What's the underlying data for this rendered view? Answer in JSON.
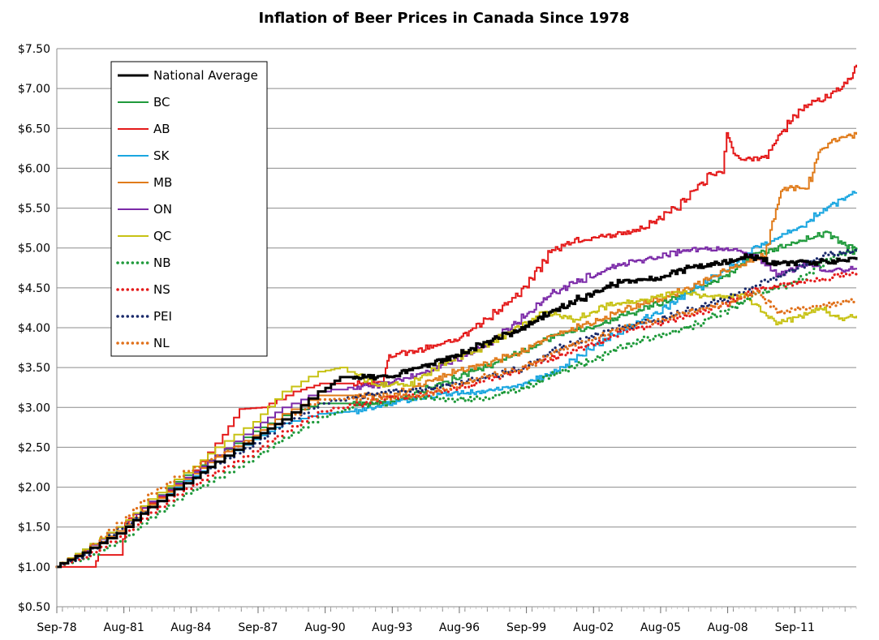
{
  "chart_data": {
    "type": "line",
    "title": "Inflation of Beer Prices in Canada Since 1978",
    "xlabel": "",
    "ylabel": "",
    "x_ticks": [
      "Sep-78",
      "Aug-81",
      "Aug-84",
      "Sep-87",
      "Aug-90",
      "Aug-93",
      "Aug-96",
      "Sep-99",
      "Aug-02",
      "Aug-05",
      "Aug-08",
      "Sep-11"
    ],
    "y_ticks": [
      "$0.50",
      "$1.00",
      "$1.50",
      "$2.00",
      "$2.50",
      "$3.00",
      "$3.50",
      "$4.00",
      "$4.50",
      "$5.00",
      "$5.50",
      "$6.00",
      "$6.50",
      "$7.00",
      "$7.50"
    ],
    "ylim": [
      0.5,
      7.5
    ],
    "xlim": [
      1978.75,
      2014.5
    ],
    "grid": "horizontal",
    "legend_position": "top-left",
    "series": [
      {
        "name": "National Average",
        "color": "#000000",
        "style": "solid",
        "points": [
          [
            1978.75,
            1.0
          ],
          [
            1980,
            1.18
          ],
          [
            1981.6,
            1.42
          ],
          [
            1983,
            1.75
          ],
          [
            1984.6,
            2.05
          ],
          [
            1986,
            2.32
          ],
          [
            1987.7,
            2.62
          ],
          [
            1989,
            2.85
          ],
          [
            1990.6,
            3.2
          ],
          [
            1991.5,
            3.38
          ],
          [
            1993.6,
            3.38
          ],
          [
            1995,
            3.5
          ],
          [
            1996.6,
            3.65
          ],
          [
            1998,
            3.82
          ],
          [
            1999.7,
            4.0
          ],
          [
            2001,
            4.22
          ],
          [
            2002.6,
            4.42
          ],
          [
            2004,
            4.58
          ],
          [
            2005.6,
            4.62
          ],
          [
            2007,
            4.75
          ],
          [
            2008.6,
            4.82
          ],
          [
            2009.6,
            4.9
          ],
          [
            2011,
            4.8
          ],
          [
            2012.5,
            4.82
          ],
          [
            2014.5,
            4.85
          ]
        ]
      },
      {
        "name": "BC",
        "color": "#1f9a3b",
        "style": "solid",
        "points": [
          [
            1978.75,
            1.0
          ],
          [
            1980,
            1.22
          ],
          [
            1981.6,
            1.5
          ],
          [
            1983,
            1.82
          ],
          [
            1984.6,
            2.15
          ],
          [
            1986,
            2.4
          ],
          [
            1987.7,
            2.7
          ],
          [
            1989,
            2.9
          ],
          [
            1990.6,
            3.05
          ],
          [
            1993.6,
            3.05
          ],
          [
            1995,
            3.2
          ],
          [
            1996.6,
            3.38
          ],
          [
            1998,
            3.52
          ],
          [
            1999.7,
            3.72
          ],
          [
            2001,
            3.9
          ],
          [
            2002.6,
            4.0
          ],
          [
            2004,
            4.15
          ],
          [
            2005.6,
            4.3
          ],
          [
            2007,
            4.45
          ],
          [
            2008.6,
            4.65
          ],
          [
            2010,
            4.92
          ],
          [
            2011.6,
            5.05
          ],
          [
            2013.2,
            5.2
          ],
          [
            2014.5,
            4.95
          ]
        ]
      },
      {
        "name": "AB",
        "color": "#e41a1a",
        "style": "solid",
        "points": [
          [
            1978.75,
            1.0
          ],
          [
            1980.4,
            1.0
          ],
          [
            1980.6,
            1.15
          ],
          [
            1981.6,
            1.15
          ],
          [
            1981.8,
            1.55
          ],
          [
            1983,
            1.8
          ],
          [
            1984.6,
            2.1
          ],
          [
            1986,
            2.55
          ],
          [
            1987,
            2.98
          ],
          [
            1988,
            3.0
          ],
          [
            1989.5,
            3.2
          ],
          [
            1990.6,
            3.3
          ],
          [
            1993.3,
            3.3
          ],
          [
            1993.6,
            3.65
          ],
          [
            1995,
            3.72
          ],
          [
            1996.6,
            3.85
          ],
          [
            1998,
            4.1
          ],
          [
            1999.7,
            4.5
          ],
          [
            2000.8,
            4.95
          ],
          [
            2002,
            5.1
          ],
          [
            2003.5,
            5.15
          ],
          [
            2005,
            5.25
          ],
          [
            2006.4,
            5.5
          ],
          [
            2008,
            5.92
          ],
          [
            2008.5,
            5.95
          ],
          [
            2008.7,
            6.45
          ],
          [
            2009,
            6.2
          ],
          [
            2009.5,
            6.1
          ],
          [
            2010.5,
            6.15
          ],
          [
            2011,
            6.4
          ],
          [
            2012,
            6.75
          ],
          [
            2013.2,
            6.9
          ],
          [
            2014.2,
            7.1
          ],
          [
            2014.5,
            7.3
          ]
        ]
      },
      {
        "name": "SK",
        "color": "#1aa6e0",
        "style": "solid",
        "points": [
          [
            1978.75,
            1.0
          ],
          [
            1980,
            1.18
          ],
          [
            1981.6,
            1.45
          ],
          [
            1983,
            1.75
          ],
          [
            1984.6,
            2.08
          ],
          [
            1986,
            2.32
          ],
          [
            1987.7,
            2.6
          ],
          [
            1989,
            2.8
          ],
          [
            1990.6,
            2.92
          ],
          [
            1992,
            2.95
          ],
          [
            1993.6,
            3.05
          ],
          [
            1995,
            3.12
          ],
          [
            1996.6,
            3.18
          ],
          [
            1998,
            3.2
          ],
          [
            1999.7,
            3.3
          ],
          [
            2001,
            3.45
          ],
          [
            2002.6,
            3.75
          ],
          [
            2004,
            3.95
          ],
          [
            2005.6,
            4.2
          ],
          [
            2007,
            4.45
          ],
          [
            2008.6,
            4.7
          ],
          [
            2010,
            5.0
          ],
          [
            2011.6,
            5.2
          ],
          [
            2013.2,
            5.5
          ],
          [
            2014.5,
            5.7
          ]
        ]
      },
      {
        "name": "MB",
        "color": "#e07b1a",
        "style": "solid",
        "points": [
          [
            1978.75,
            1.0
          ],
          [
            1980,
            1.18
          ],
          [
            1981.6,
            1.45
          ],
          [
            1983,
            1.78
          ],
          [
            1984.6,
            2.1
          ],
          [
            1986,
            2.38
          ],
          [
            1987.7,
            2.65
          ],
          [
            1989,
            2.92
          ],
          [
            1990.6,
            3.15
          ],
          [
            1993.6,
            3.15
          ],
          [
            1995,
            3.28
          ],
          [
            1996.6,
            3.45
          ],
          [
            1998,
            3.55
          ],
          [
            1999.7,
            3.72
          ],
          [
            2001,
            3.92
          ],
          [
            2002.6,
            4.05
          ],
          [
            2004,
            4.22
          ],
          [
            2005.6,
            4.35
          ],
          [
            2007,
            4.5
          ],
          [
            2008.6,
            4.72
          ],
          [
            2010.4,
            4.9
          ],
          [
            2010.9,
            5.5
          ],
          [
            2011.2,
            5.75
          ],
          [
            2012.3,
            5.75
          ],
          [
            2012.8,
            6.2
          ],
          [
            2013.5,
            6.35
          ],
          [
            2014.5,
            6.42
          ]
        ]
      },
      {
        "name": "ON",
        "color": "#7b2aa8",
        "style": "solid",
        "points": [
          [
            1978.75,
            1.0
          ],
          [
            1980,
            1.2
          ],
          [
            1981.6,
            1.5
          ],
          [
            1983,
            1.82
          ],
          [
            1984.6,
            2.12
          ],
          [
            1986,
            2.4
          ],
          [
            1987.7,
            2.75
          ],
          [
            1989,
            3.0
          ],
          [
            1990.6,
            3.2
          ],
          [
            1993.6,
            3.3
          ],
          [
            1995,
            3.42
          ],
          [
            1996.6,
            3.6
          ],
          [
            1998,
            3.78
          ],
          [
            1999.7,
            4.15
          ],
          [
            2001,
            4.45
          ],
          [
            2002.6,
            4.65
          ],
          [
            2004,
            4.8
          ],
          [
            2005.6,
            4.88
          ],
          [
            2007,
            4.98
          ],
          [
            2008.6,
            5.0
          ],
          [
            2010,
            4.9
          ],
          [
            2011,
            4.65
          ],
          [
            2012.3,
            4.8
          ],
          [
            2013.2,
            4.7
          ],
          [
            2014.5,
            4.75
          ]
        ]
      },
      {
        "name": "QC",
        "color": "#c7c214",
        "style": "solid",
        "points": [
          [
            1978.75,
            1.0
          ],
          [
            1980,
            1.22
          ],
          [
            1981.6,
            1.5
          ],
          [
            1983,
            1.85
          ],
          [
            1984.6,
            2.18
          ],
          [
            1986,
            2.5
          ],
          [
            1987.7,
            2.82
          ],
          [
            1989,
            3.2
          ],
          [
            1990.6,
            3.45
          ],
          [
            1991.5,
            3.5
          ],
          [
            1993,
            3.28
          ],
          [
            1994.5,
            3.3
          ],
          [
            1996,
            3.55
          ],
          [
            1997.5,
            3.72
          ],
          [
            1999,
            3.95
          ],
          [
            2000.5,
            4.18
          ],
          [
            2002,
            4.1
          ],
          [
            2003.5,
            4.3
          ],
          [
            2005,
            4.35
          ],
          [
            2006.5,
            4.45
          ],
          [
            2008,
            4.38
          ],
          [
            2009.5,
            4.42
          ],
          [
            2010.3,
            4.2
          ],
          [
            2011,
            4.05
          ],
          [
            2012,
            4.15
          ],
          [
            2013,
            4.25
          ],
          [
            2013.8,
            4.1
          ],
          [
            2014.5,
            4.15
          ]
        ]
      },
      {
        "name": "NB",
        "color": "#1f9a3b",
        "style": "dotted",
        "points": [
          [
            1978.75,
            1.0
          ],
          [
            1980,
            1.1
          ],
          [
            1981.6,
            1.32
          ],
          [
            1983,
            1.62
          ],
          [
            1984.6,
            1.92
          ],
          [
            1986,
            2.12
          ],
          [
            1987.7,
            2.38
          ],
          [
            1989,
            2.62
          ],
          [
            1990.6,
            2.88
          ],
          [
            1992,
            3.0
          ],
          [
            1993.6,
            3.1
          ],
          [
            1995,
            3.12
          ],
          [
            1996.6,
            3.1
          ],
          [
            1998,
            3.12
          ],
          [
            1999.7,
            3.25
          ],
          [
            2001,
            3.42
          ],
          [
            2002.6,
            3.58
          ],
          [
            2004,
            3.75
          ],
          [
            2005.6,
            3.9
          ],
          [
            2007,
            4.0
          ],
          [
            2008.6,
            4.2
          ],
          [
            2010,
            4.42
          ],
          [
            2011.6,
            4.55
          ],
          [
            2013.2,
            4.85
          ],
          [
            2014.5,
            5.0
          ]
        ]
      },
      {
        "name": "NS",
        "color": "#e41a1a",
        "style": "dotted",
        "points": [
          [
            1978.75,
            1.0
          ],
          [
            1980,
            1.12
          ],
          [
            1981.6,
            1.38
          ],
          [
            1983,
            1.68
          ],
          [
            1984.6,
            1.98
          ],
          [
            1986,
            2.2
          ],
          [
            1987.7,
            2.45
          ],
          [
            1989,
            2.7
          ],
          [
            1990.6,
            2.95
          ],
          [
            1993.6,
            3.12
          ],
          [
            1995,
            3.15
          ],
          [
            1996.6,
            3.25
          ],
          [
            1998,
            3.35
          ],
          [
            1999.7,
            3.5
          ],
          [
            2001,
            3.62
          ],
          [
            2002.6,
            3.78
          ],
          [
            2004,
            3.95
          ],
          [
            2005.6,
            4.05
          ],
          [
            2007,
            4.15
          ],
          [
            2008.6,
            4.3
          ],
          [
            2010,
            4.48
          ],
          [
            2011.6,
            4.55
          ],
          [
            2013.2,
            4.62
          ],
          [
            2014.5,
            4.7
          ]
        ]
      },
      {
        "name": "PEI",
        "color": "#1a2a6b",
        "style": "dotted",
        "points": [
          [
            1978.75,
            1.0
          ],
          [
            1980,
            1.15
          ],
          [
            1981.6,
            1.48
          ],
          [
            1983,
            1.75
          ],
          [
            1984.6,
            2.05
          ],
          [
            1986,
            2.3
          ],
          [
            1987.7,
            2.55
          ],
          [
            1989,
            2.8
          ],
          [
            1990.6,
            3.05
          ],
          [
            1993.6,
            3.2
          ],
          [
            1995,
            3.22
          ],
          [
            1996.6,
            3.3
          ],
          [
            1998,
            3.38
          ],
          [
            1999.7,
            3.5
          ],
          [
            2001,
            3.72
          ],
          [
            2002.6,
            3.88
          ],
          [
            2004,
            4.0
          ],
          [
            2005.6,
            4.1
          ],
          [
            2007,
            4.22
          ],
          [
            2008.6,
            4.35
          ],
          [
            2010,
            4.52
          ],
          [
            2011.6,
            4.72
          ],
          [
            2013.2,
            4.92
          ],
          [
            2014.5,
            4.95
          ]
        ]
      },
      {
        "name": "NL",
        "color": "#e0701a",
        "style": "dotted",
        "points": [
          [
            1978.75,
            1.0
          ],
          [
            1980,
            1.2
          ],
          [
            1981.6,
            1.55
          ],
          [
            1983,
            1.92
          ],
          [
            1984.6,
            2.2
          ],
          [
            1986,
            2.4
          ],
          [
            1987.7,
            2.62
          ],
          [
            1989,
            2.85
          ],
          [
            1990.6,
            3.1
          ],
          [
            1993.6,
            3.12
          ],
          [
            1995,
            3.15
          ],
          [
            1996.6,
            3.28
          ],
          [
            1998,
            3.4
          ],
          [
            1999.7,
            3.5
          ],
          [
            2001,
            3.7
          ],
          [
            2002.6,
            3.85
          ],
          [
            2004,
            4.0
          ],
          [
            2005.6,
            4.1
          ],
          [
            2007,
            4.2
          ],
          [
            2008.6,
            4.3
          ],
          [
            2010,
            4.45
          ],
          [
            2011,
            4.2
          ],
          [
            2012.3,
            4.25
          ],
          [
            2013.5,
            4.3
          ],
          [
            2014.5,
            4.35
          ]
        ]
      }
    ]
  }
}
